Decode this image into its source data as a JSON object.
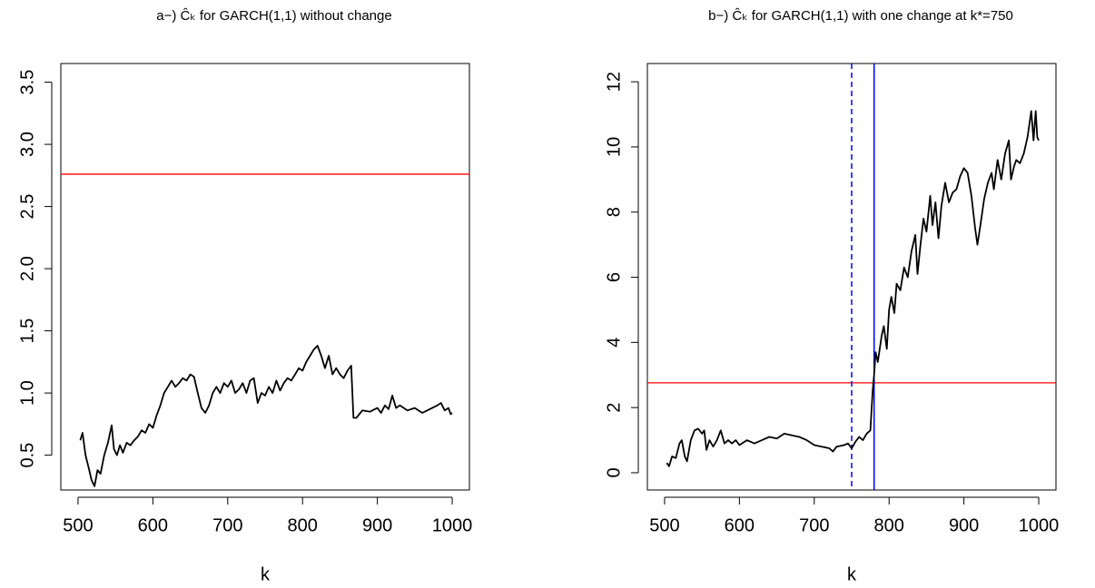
{
  "chart_data": [
    {
      "type": "line",
      "title": "a−) Ĉₖ  for GARCH(1,1) without change",
      "x_label": "k",
      "xlim": [
        477,
        1023
      ],
      "ylim": [
        0.22,
        3.65
      ],
      "xticks": [
        500,
        600,
        700,
        800,
        900,
        1000
      ],
      "yticks": [
        0.5,
        {
          "value": 1,
          "label": "1.0"
        },
        1.5,
        {
          "value": 2,
          "label": "2.0"
        },
        2.5,
        {
          "value": 3,
          "label": "3.0"
        },
        3.5
      ],
      "x": [
        503,
        506,
        510,
        515,
        518,
        522,
        526,
        530,
        535,
        540,
        545,
        548,
        552,
        556,
        560,
        565,
        570,
        575,
        580,
        585,
        590,
        595,
        600,
        605,
        610,
        615,
        620,
        625,
        630,
        635,
        640,
        645,
        650,
        655,
        660,
        665,
        670,
        675,
        680,
        685,
        690,
        695,
        700,
        705,
        710,
        715,
        720,
        725,
        730,
        735,
        740,
        745,
        750,
        755,
        760,
        765,
        770,
        775,
        780,
        785,
        790,
        795,
        800,
        805,
        810,
        815,
        820,
        825,
        830,
        835,
        840,
        845,
        850,
        855,
        860,
        865,
        868,
        872,
        880,
        890,
        900,
        905,
        910,
        915,
        920,
        925,
        930,
        940,
        950,
        960,
        970,
        980,
        985,
        990,
        995,
        998,
        1000
      ],
      "series": [
        {
          "color": "#000000",
          "values": [
            0.62,
            0.68,
            0.5,
            0.38,
            0.3,
            0.25,
            0.38,
            0.35,
            0.5,
            0.6,
            0.74,
            0.55,
            0.5,
            0.58,
            0.52,
            0.6,
            0.58,
            0.62,
            0.65,
            0.7,
            0.68,
            0.75,
            0.72,
            0.82,
            0.9,
            1.0,
            1.05,
            1.1,
            1.05,
            1.08,
            1.12,
            1.1,
            1.15,
            1.13,
            1.0,
            0.88,
            0.84,
            0.9,
            1.0,
            1.05,
            1.0,
            1.08,
            1.05,
            1.1,
            1.0,
            1.03,
            1.08,
            1.0,
            1.1,
            1.12,
            0.92,
            1.0,
            0.98,
            1.05,
            1.0,
            1.1,
            1.02,
            1.08,
            1.12,
            1.1,
            1.15,
            1.2,
            1.18,
            1.25,
            1.3,
            1.35,
            1.38,
            1.3,
            1.2,
            1.3,
            1.15,
            1.2,
            1.15,
            1.12,
            1.18,
            1.22,
            0.8,
            0.8,
            0.86,
            0.85,
            0.88,
            0.84,
            0.9,
            0.87,
            0.98,
            0.88,
            0.9,
            0.86,
            0.88,
            0.84,
            0.87,
            0.9,
            0.92,
            0.86,
            0.88,
            0.83,
            0.84
          ]
        }
      ],
      "hlines": [
        {
          "value": 2.76,
          "color": "#ff0000"
        }
      ],
      "vlines": []
    },
    {
      "type": "line",
      "title": "b−) Ĉₖ  for GARCH(1,1) with one change at k*=750",
      "x_label": "k",
      "xlim": [
        477,
        1023
      ],
      "ylim": [
        -0.53,
        12.56
      ],
      "xticks": [
        500,
        600,
        700,
        800,
        900,
        1000
      ],
      "yticks": [
        0,
        2,
        4,
        6,
        8,
        10,
        12
      ],
      "x": [
        503,
        506,
        510,
        515,
        520,
        523,
        527,
        530,
        535,
        540,
        545,
        550,
        553,
        556,
        560,
        565,
        570,
        575,
        580,
        585,
        590,
        595,
        600,
        610,
        620,
        630,
        640,
        650,
        660,
        670,
        680,
        690,
        700,
        710,
        720,
        725,
        730,
        740,
        745,
        750,
        755,
        760,
        765,
        770,
        775,
        778,
        780,
        782,
        785,
        790,
        793,
        797,
        800,
        803,
        807,
        810,
        815,
        820,
        825,
        830,
        835,
        838,
        842,
        846,
        850,
        855,
        858,
        862,
        866,
        870,
        875,
        880,
        885,
        890,
        895,
        900,
        905,
        910,
        915,
        918,
        922,
        927,
        932,
        937,
        940,
        945,
        950,
        955,
        960,
        963,
        967,
        970,
        975,
        980,
        985,
        990,
        993,
        996,
        998,
        1000
      ],
      "series": [
        {
          "color": "#000000",
          "values": [
            0.3,
            0.2,
            0.5,
            0.45,
            0.9,
            1.0,
            0.5,
            0.35,
            1.0,
            1.3,
            1.35,
            1.2,
            1.3,
            0.7,
            1.0,
            0.8,
            1.0,
            1.3,
            0.9,
            1.0,
            0.9,
            1.0,
            0.85,
            1.0,
            0.9,
            1.0,
            1.1,
            1.05,
            1.2,
            1.15,
            1.1,
            1.0,
            0.85,
            0.8,
            0.75,
            0.65,
            0.8,
            0.85,
            0.9,
            0.75,
            0.95,
            1.1,
            1.0,
            1.2,
            1.3,
            2.5,
            3.0,
            3.7,
            3.4,
            4.2,
            4.5,
            3.8,
            5.0,
            5.4,
            4.9,
            5.8,
            5.6,
            6.3,
            6.0,
            6.8,
            7.3,
            6.1,
            7.0,
            7.8,
            7.4,
            8.5,
            7.6,
            8.3,
            7.2,
            8.2,
            8.9,
            8.3,
            8.6,
            8.7,
            9.1,
            9.35,
            9.2,
            8.5,
            7.5,
            7.0,
            7.6,
            8.4,
            8.9,
            9.2,
            8.7,
            9.6,
            9.0,
            9.8,
            10.2,
            9.0,
            9.4,
            9.6,
            9.5,
            9.8,
            10.3,
            11.1,
            10.2,
            11.1,
            10.3,
            10.2
          ]
        }
      ],
      "hlines": [
        {
          "value": 2.76,
          "color": "#ff0000"
        }
      ],
      "vlines": [
        {
          "value": 750,
          "color": "#0000ff",
          "dashed": true
        },
        {
          "value": 780,
          "color": "#0000ff",
          "dashed": false
        }
      ]
    }
  ]
}
